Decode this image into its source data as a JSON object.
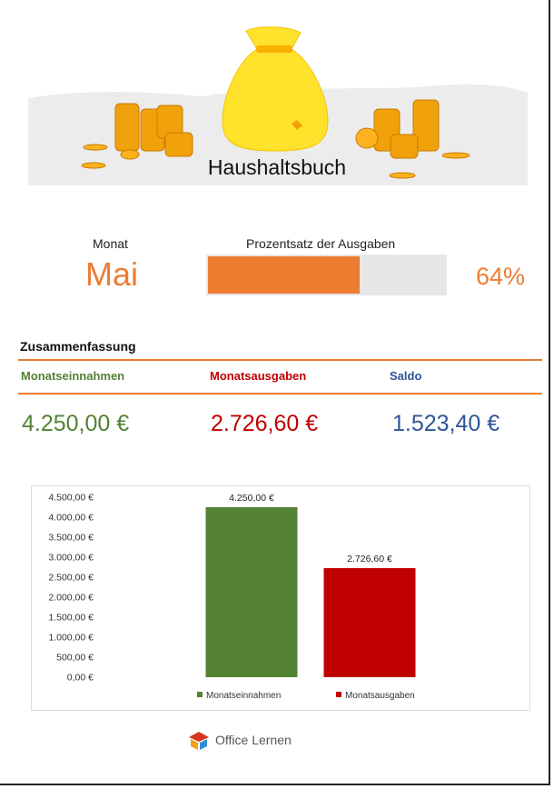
{
  "header": {
    "title": "Haushaltsbuch"
  },
  "month": {
    "label": "Monat",
    "value": "Mai"
  },
  "expense_percentage": {
    "label": "Prozentsatz der Ausgaben",
    "value_text": "64%",
    "fraction": 0.64
  },
  "summary": {
    "title": "Zusammenfassung",
    "columns": [
      {
        "label": "Monatseinnahmen",
        "amount": "4.250,00 €",
        "color": "#538135"
      },
      {
        "label": "Monatsausgaben",
        "amount": "2.726,60 €",
        "color": "#c00000"
      },
      {
        "label": "Saldo",
        "amount": "1.523,40 €",
        "color": "#2f5597"
      }
    ]
  },
  "chart_data": {
    "type": "bar",
    "categories": [
      "Monatseinnahmen",
      "Monatsausgaben"
    ],
    "values": [
      4250.0,
      2726.6
    ],
    "data_labels": [
      "4.250,00 €",
      "2.726,60 €"
    ],
    "colors": [
      "#548235",
      "#c00000"
    ],
    "ylim": [
      0,
      4500
    ],
    "y_ticks": [
      {
        "value": 4500,
        "label": "4.500,00 €"
      },
      {
        "value": 4000,
        "label": "4.000,00 €"
      },
      {
        "value": 3500,
        "label": "3.500,00 €"
      },
      {
        "value": 3000,
        "label": "3.000,00 €"
      },
      {
        "value": 2500,
        "label": "2.500,00 €"
      },
      {
        "value": 2000,
        "label": "2.000,00 €"
      },
      {
        "value": 1500,
        "label": "1.500,00 €"
      },
      {
        "value": 1000,
        "label": "1.000,00 €"
      },
      {
        "value": 500,
        "label": "500,00 €"
      },
      {
        "value": 0,
        "label": "0,00 €"
      }
    ],
    "legend_position": "bottom",
    "grid": false
  },
  "footer": {
    "brand": "Office Lernen"
  },
  "colors": {
    "accent": "#ed7d31",
    "income": "#548235",
    "expense": "#c00000",
    "balance": "#2f5597"
  },
  "icons": [
    "money-bag-icon",
    "coin-stack-icon",
    "office-lernen-logo-icon"
  ]
}
